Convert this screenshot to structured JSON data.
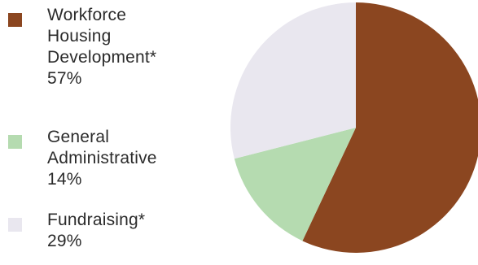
{
  "chart_data": {
    "type": "pie",
    "categories": [
      "Workforce Housing Development*",
      "General Administrative",
      "Fundraising*"
    ],
    "values": [
      57,
      14,
      29
    ],
    "labels": [
      "57%",
      "14%",
      "29%"
    ],
    "colors": [
      "#8b4620",
      "#b5dbb0",
      "#e9e7ef"
    ],
    "legend_placement": "left",
    "legend": [
      {
        "lines": [
          "Workforce",
          "Housing",
          "Development*"
        ],
        "value_label": "57%",
        "color": "#8b4620"
      },
      {
        "lines": [
          "General",
          "Administrative"
        ],
        "value_label": "14%",
        "color": "#b5dbb0"
      },
      {
        "lines": [
          "Fundraising*"
        ],
        "value_label": "29%",
        "color": "#e9e7ef"
      }
    ]
  }
}
